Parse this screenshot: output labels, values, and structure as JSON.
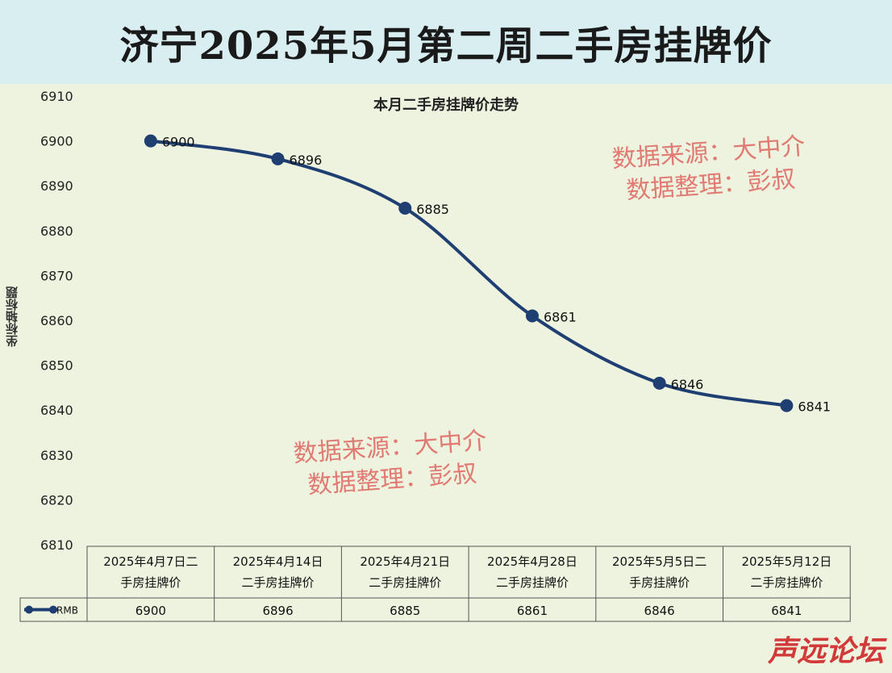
{
  "header": {
    "title": "济宁2025年5月第二周二手房挂牌价"
  },
  "watermark": {
    "line1": "数据来源：大中介",
    "line2": "数据整理：彭叔"
  },
  "forum_logo": "声远论坛",
  "chart_data": {
    "type": "line",
    "title": "本月二手房挂牌价走势",
    "ylabel": "坐标轴标题",
    "ylim": [
      6810,
      6910
    ],
    "yticks": [
      6910,
      6900,
      6890,
      6880,
      6870,
      6860,
      6850,
      6840,
      6830,
      6820,
      6810
    ],
    "categories": [
      [
        "2025年4月7日二",
        "手房挂牌价"
      ],
      [
        "2025年4月14日",
        "二手房挂牌价"
      ],
      [
        "2025年4月21日",
        "二手房挂牌价"
      ],
      [
        "2025年4月28日",
        "二手房挂牌价"
      ],
      [
        "2025年5月5日二",
        "手房挂牌价"
      ],
      [
        "2025年5月12日",
        "二手房挂牌价"
      ]
    ],
    "series": [
      {
        "name": "RMB",
        "values": [
          6900,
          6896,
          6885,
          6861,
          6846,
          6841
        ],
        "color": "#1f3f73"
      }
    ],
    "grid": false,
    "data_labels": true,
    "legend": "data-table"
  }
}
